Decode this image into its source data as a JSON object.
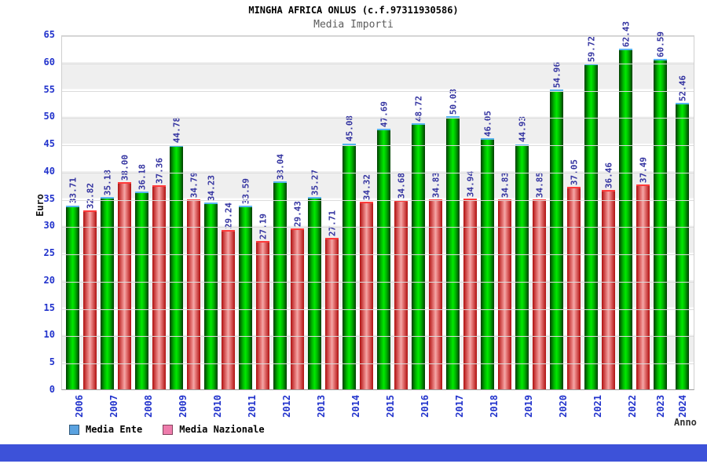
{
  "header": {
    "title": "MINGHA AFRICA ONLUS (c.f.97311930586)",
    "subtitle": "Media Importi"
  },
  "axes": {
    "y_label": "Euro",
    "x_label": "Anno",
    "y_ticks": [
      0,
      5,
      10,
      15,
      20,
      25,
      30,
      35,
      40,
      45,
      50,
      55,
      60,
      65
    ]
  },
  "legend": {
    "items": [
      {
        "label": "Media Ente",
        "swatch": "#5aa2e0"
      },
      {
        "label": "Media Nazionale",
        "swatch": "#ee7cac"
      }
    ]
  },
  "chart_data": {
    "type": "bar",
    "title": "MINGHA AFRICA ONLUS (c.f.97311930586)",
    "subtitle": "Media Importi",
    "xlabel": "Anno",
    "ylabel": "Euro",
    "ylim": [
      0,
      65
    ],
    "ytick_step": 5,
    "grid": "horizontal",
    "legend_position": "bottom-left",
    "categories": [
      "2006",
      "2007",
      "2008",
      "2009",
      "2010",
      "2011",
      "2012",
      "2013",
      "2014",
      "2015",
      "2016",
      "2017",
      "2018",
      "2019",
      "2020",
      "2021",
      "2022",
      "2023",
      "2024"
    ],
    "series": [
      {
        "name": "Media Ente",
        "bar_color": "#00ea00",
        "values": [
          33.71,
          35.18,
          36.18,
          44.78,
          34.23,
          33.59,
          38.04,
          35.27,
          45.08,
          47.69,
          48.72,
          50.03,
          46.05,
          44.93,
          54.96,
          59.72,
          62.43,
          60.59,
          52.46
        ]
      },
      {
        "name": "Media Nazionale",
        "bar_color": "#f3a8a8",
        "values": [
          32.82,
          38.0,
          37.36,
          34.79,
          29.24,
          27.19,
          29.43,
          27.71,
          34.32,
          34.68,
          34.83,
          34.94,
          34.83,
          34.85,
          37.05,
          36.46,
          37.49,
          null,
          null
        ]
      }
    ]
  },
  "colors": {
    "axis_text": "#2233cc",
    "value_text": "#3333a0",
    "grid": "#dcdcdc",
    "band": "#efefef",
    "footer_bar": "#3d52d9"
  }
}
